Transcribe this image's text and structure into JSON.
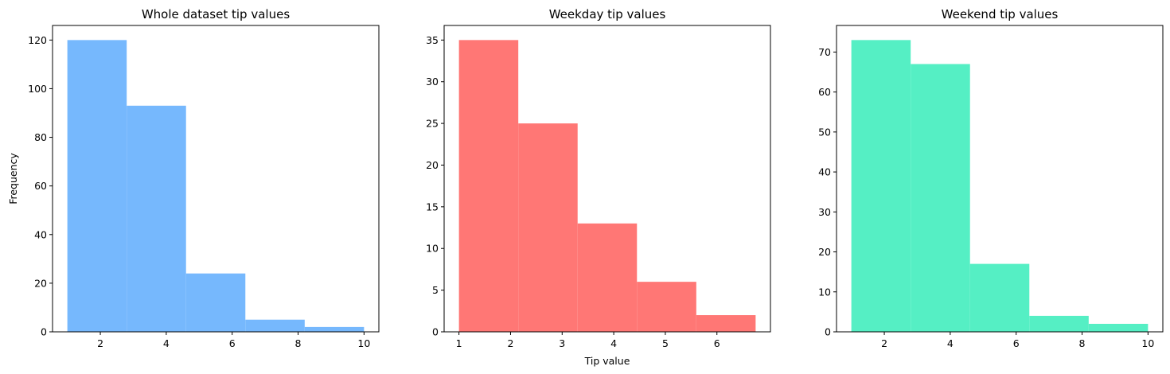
{
  "chart_data": [
    {
      "type": "bar",
      "title": "Whole dataset tip values",
      "xlabel": "",
      "ylabel": "Frequency",
      "color": "#76b8fd",
      "bin_edges": [
        1.0,
        2.8,
        4.6,
        6.4,
        8.2,
        10.0
      ],
      "values": [
        120,
        93,
        24,
        5,
        2
      ],
      "xlim": [
        0.55,
        10.45
      ],
      "ylim": [
        0,
        126
      ],
      "xticks": [
        2,
        4,
        6,
        8,
        10
      ],
      "xtick_labels": [
        "2",
        "4",
        "6",
        "8",
        "10"
      ],
      "yticks": [
        0,
        20,
        40,
        60,
        80,
        100,
        120
      ],
      "ytick_labels": [
        "0",
        "20",
        "40",
        "60",
        "80",
        "100",
        "120"
      ]
    },
    {
      "type": "bar",
      "title": "Weekday tip values",
      "xlabel": "Tip value",
      "ylabel": "",
      "color": "#ff7775",
      "bin_edges": [
        1.0,
        2.15,
        3.3,
        4.45,
        5.6,
        6.75
      ],
      "values": [
        35,
        25,
        13,
        6,
        2
      ],
      "xlim": [
        0.7125,
        7.0375
      ],
      "ylim": [
        0,
        36.75
      ],
      "xticks": [
        1,
        2,
        3,
        4,
        5,
        6
      ],
      "xtick_labels": [
        "1",
        "2",
        "3",
        "4",
        "5",
        "6"
      ],
      "yticks": [
        0,
        5,
        10,
        15,
        20,
        25,
        30,
        35
      ],
      "ytick_labels": [
        "0",
        "5",
        "10",
        "15",
        "20",
        "25",
        "30",
        "35"
      ]
    },
    {
      "type": "bar",
      "title": "Weekend tip values",
      "xlabel": "",
      "ylabel": "",
      "color": "#55efc4",
      "bin_edges": [
        1.0,
        2.8,
        4.6,
        6.4,
        8.2,
        10.0
      ],
      "values": [
        73,
        67,
        17,
        4,
        2
      ],
      "xlim": [
        0.55,
        10.45
      ],
      "ylim": [
        0,
        76.65
      ],
      "xticks": [
        2,
        4,
        6,
        8,
        10
      ],
      "xtick_labels": [
        "2",
        "4",
        "6",
        "8",
        "10"
      ],
      "yticks": [
        0,
        10,
        20,
        30,
        40,
        50,
        60,
        70
      ],
      "ytick_labels": [
        "0",
        "10",
        "20",
        "30",
        "40",
        "50",
        "60",
        "70"
      ]
    }
  ]
}
